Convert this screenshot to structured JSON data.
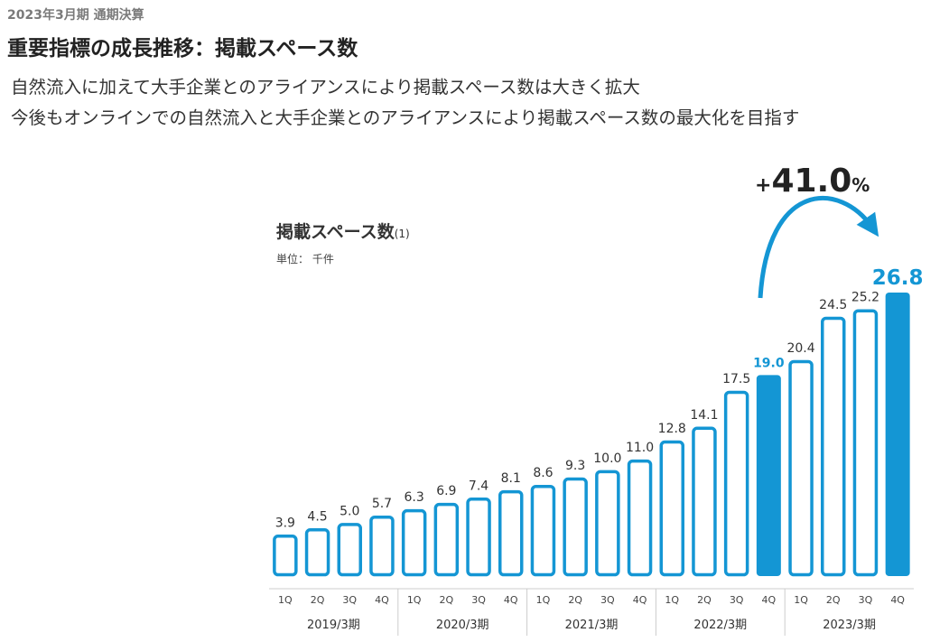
{
  "header": {
    "eyebrow": "2023年3月期 通期決算",
    "title": "重要指標の成長推移：掲載スペース数",
    "lines": [
      "自然流入に加えて大手企業とのアライアンスにより掲載スペース数は大きく拡大",
      "今後もオンラインでの自然流入と大手企業とのアライアンスにより掲載スペース数の最大化を目指す"
    ]
  },
  "growth": {
    "sign": "+",
    "value": "41.0",
    "unit": "%"
  },
  "colors": {
    "accent": "#1496d4",
    "grid": "#cccccc"
  },
  "chart_data": {
    "type": "bar",
    "title": "掲載スペース数",
    "title_note": "(1)",
    "unit_label": "単位： 千件",
    "categories": [
      "1Q",
      "2Q",
      "3Q",
      "4Q",
      "1Q",
      "2Q",
      "3Q",
      "4Q",
      "1Q",
      "2Q",
      "3Q",
      "4Q",
      "1Q",
      "2Q",
      "3Q",
      "4Q",
      "1Q",
      "2Q",
      "3Q",
      "4Q"
    ],
    "groups": [
      "2019/3期",
      "2020/3期",
      "2021/3期",
      "2022/3期",
      "2023/3期"
    ],
    "values": [
      3.9,
      4.5,
      5.0,
      5.7,
      6.3,
      6.9,
      7.4,
      8.1,
      8.6,
      9.3,
      10.0,
      11.0,
      12.8,
      14.1,
      17.5,
      19.0,
      20.4,
      24.5,
      25.2,
      26.8
    ],
    "value_labels": [
      "3.9",
      "4.5",
      "5.0",
      "5.7",
      "6.3",
      "6.9",
      "7.4",
      "8.1",
      "8.6",
      "9.3",
      "10.0",
      "11.0",
      "12.8",
      "14.1",
      "17.5",
      "19.0",
      "20.4",
      "24.5",
      "25.2",
      "26.8"
    ],
    "highlighted": [
      15,
      19
    ],
    "ylim": [
      0,
      26.8
    ],
    "grid": false,
    "legend": "none"
  }
}
